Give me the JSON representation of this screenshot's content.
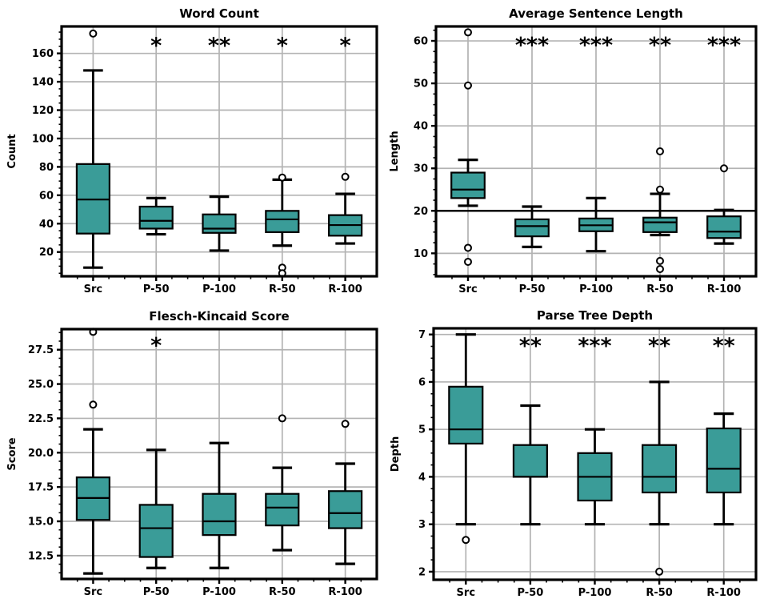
{
  "figure": {
    "background": "#ffffff",
    "box_fill": "#3A9C98",
    "box_edge": "#000000",
    "grid_color": "#b3b3b3",
    "text_color": "#000000",
    "categories": [
      "Src",
      "P-50",
      "P-100",
      "R-50",
      "R-100"
    ]
  },
  "chart_data": [
    {
      "type": "box",
      "title": "Word Count",
      "ylabel": "Count",
      "ylim": [
        2.9,
        179
      ],
      "yticks": [
        20,
        40,
        60,
        80,
        100,
        120,
        140,
        160
      ],
      "ytick_labels": [
        "20",
        "40",
        "60",
        "80",
        "100",
        "120",
        "140",
        "160"
      ],
      "minor_step": 5,
      "categories": [
        "Src",
        "P-50",
        "P-100",
        "R-50",
        "R-100"
      ],
      "significance": [
        "",
        "*",
        "**",
        "*",
        "*"
      ],
      "sig_y": 168.5,
      "boxes": [
        {
          "label": "Src",
          "whislo": 9,
          "q1": 33,
          "med": 57,
          "q3": 82,
          "whishi": 148,
          "fliers": [
            174
          ]
        },
        {
          "label": "P-50",
          "whislo": 32.5,
          "q1": 36.5,
          "med": 42,
          "q3": 52,
          "whishi": 58,
          "fliers": []
        },
        {
          "label": "P-100",
          "whislo": 21,
          "q1": 33.5,
          "med": 36.5,
          "q3": 46.5,
          "whishi": 59,
          "fliers": []
        },
        {
          "label": "R-50",
          "whislo": 24.5,
          "q1": 34,
          "med": 43,
          "q3": 49,
          "whishi": 71,
          "fliers": [
            72.5,
            9,
            5
          ]
        },
        {
          "label": "R-100",
          "whislo": 26,
          "q1": 31.5,
          "med": 39,
          "q3": 46,
          "whishi": 61,
          "fliers": [
            73
          ]
        }
      ]
    },
    {
      "type": "box",
      "title": "Average Sentence Length",
      "ylabel": "Length",
      "ylim": [
        4.6,
        63.4
      ],
      "yticks": [
        10,
        20,
        30,
        40,
        50,
        60
      ],
      "ytick_labels": [
        "10",
        "20",
        "30",
        "40",
        "50",
        "60"
      ],
      "minor_step": 2.5,
      "refline_y": 20,
      "categories": [
        "Src",
        "P-50",
        "P-100",
        "R-50",
        "R-100"
      ],
      "significance": [
        "",
        "***",
        "***",
        "**",
        "***"
      ],
      "sig_y": 60,
      "boxes": [
        {
          "label": "Src",
          "whislo": 21.2,
          "q1": 23,
          "med": 25,
          "q3": 29,
          "whishi": 32,
          "fliers": [
            62,
            49.5,
            11.3,
            8
          ]
        },
        {
          "label": "P-50",
          "whislo": 11.5,
          "q1": 14,
          "med": 16.4,
          "q3": 18,
          "whishi": 21,
          "fliers": []
        },
        {
          "label": "P-100",
          "whislo": 10.5,
          "q1": 15.2,
          "med": 16.6,
          "q3": 18.2,
          "whishi": 23,
          "fliers": []
        },
        {
          "label": "R-50",
          "whislo": 14.3,
          "q1": 15,
          "med": 17.3,
          "q3": 18.4,
          "whishi": 24,
          "fliers": [
            34,
            25,
            8.2,
            6.3
          ]
        },
        {
          "label": "R-100",
          "whislo": 12.3,
          "q1": 13.6,
          "med": 15.1,
          "q3": 18.7,
          "whishi": 20.2,
          "fliers": [
            30
          ]
        }
      ]
    },
    {
      "type": "box",
      "title": "Flesch-Kincaid Score",
      "ylabel": "Score",
      "ylim": [
        10.8,
        29.0
      ],
      "yticks": [
        12.5,
        15,
        17.5,
        20,
        22.5,
        25,
        27.5
      ],
      "ytick_labels": [
        "12.5",
        "15.0",
        "17.5",
        "20.0",
        "22.5",
        "25.0",
        "27.5"
      ],
      "minor_step": 0.625,
      "categories": [
        "Src",
        "P-50",
        "P-100",
        "R-50",
        "R-100"
      ],
      "significance": [
        "",
        "*",
        "",
        "",
        ""
      ],
      "sig_y": 28.1,
      "boxes": [
        {
          "label": "Src",
          "whislo": 11.2,
          "q1": 15.1,
          "med": 16.7,
          "q3": 18.2,
          "whishi": 21.7,
          "fliers": [
            28.8,
            23.5
          ]
        },
        {
          "label": "P-50",
          "whislo": 11.6,
          "q1": 12.4,
          "med": 14.5,
          "q3": 16.2,
          "whishi": 20.2,
          "fliers": []
        },
        {
          "label": "P-100",
          "whislo": 11.6,
          "q1": 14,
          "med": 15,
          "q3": 17,
          "whishi": 20.7,
          "fliers": []
        },
        {
          "label": "R-50",
          "whislo": 12.9,
          "q1": 14.7,
          "med": 16,
          "q3": 17,
          "whishi": 18.9,
          "fliers": [
            22.5
          ]
        },
        {
          "label": "R-100",
          "whislo": 11.9,
          "q1": 14.5,
          "med": 15.6,
          "q3": 17.2,
          "whishi": 19.2,
          "fliers": [
            22.1
          ]
        }
      ]
    },
    {
      "type": "box",
      "title": "Parse Tree Depth",
      "ylabel": "Depth",
      "ylim": [
        1.83,
        7.13
      ],
      "yticks": [
        2,
        3,
        4,
        5,
        6,
        7
      ],
      "ytick_labels": [
        "2",
        "3",
        "4",
        "5",
        "6",
        "7"
      ],
      "minor_step": 0.25,
      "categories": [
        "Src",
        "P-50",
        "P-100",
        "R-50",
        "R-100"
      ],
      "significance": [
        "",
        "**",
        "***",
        "**",
        "**"
      ],
      "sig_y": 6.85,
      "boxes": [
        {
          "label": "Src",
          "whislo": 3,
          "q1": 4.7,
          "med": 5,
          "q3": 5.9,
          "whishi": 7,
          "fliers": [
            2.67
          ]
        },
        {
          "label": "P-50",
          "whislo": 3,
          "q1": 4,
          "med": 4,
          "q3": 4.67,
          "whishi": 5.5,
          "fliers": []
        },
        {
          "label": "P-100",
          "whislo": 3,
          "q1": 3.5,
          "med": 4,
          "q3": 4.5,
          "whishi": 5,
          "fliers": []
        },
        {
          "label": "R-50",
          "whislo": 3,
          "q1": 3.67,
          "med": 4,
          "q3": 4.67,
          "whishi": 6,
          "fliers": [
            2
          ]
        },
        {
          "label": "R-100",
          "whislo": 3,
          "q1": 3.67,
          "med": 4.17,
          "q3": 5.02,
          "whishi": 5.33,
          "fliers": []
        }
      ]
    }
  ]
}
